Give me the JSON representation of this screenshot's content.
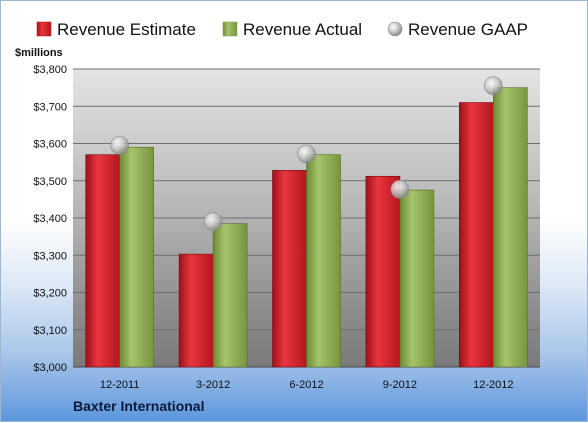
{
  "chart_data": {
    "type": "bar",
    "categories": [
      "12-2011",
      "3-2012",
      "6-2012",
      "9-2012",
      "12-2012"
    ],
    "series": [
      {
        "name": "Revenue Estimate",
        "values": [
          3570,
          3303,
          3528,
          3512,
          3710
        ],
        "color": "#d0212b",
        "marker": "square"
      },
      {
        "name": "Revenue Actual",
        "values": [
          3590,
          3385,
          3570,
          3475,
          3750
        ],
        "color": "#8aac4e",
        "marker": "square"
      },
      {
        "name": "Revenue GAAP",
        "values": [
          3595,
          3390,
          3572,
          3477,
          3755
        ],
        "color": "#b0b0b0",
        "marker": "circle"
      }
    ],
    "ylabel": "$millions",
    "ylim": [
      3000,
      3800
    ],
    "yticks": [
      3000,
      3100,
      3200,
      3300,
      3400,
      3500,
      3600,
      3700,
      3800
    ],
    "ytick_labels": [
      "$3,000",
      "$3,100",
      "$3,200",
      "$3,300",
      "$3,400",
      "$3,500",
      "$3,600",
      "$3,700",
      "$3,800"
    ],
    "grid": true,
    "legend_position": "top"
  },
  "footer": {
    "company": "Baxter International"
  }
}
